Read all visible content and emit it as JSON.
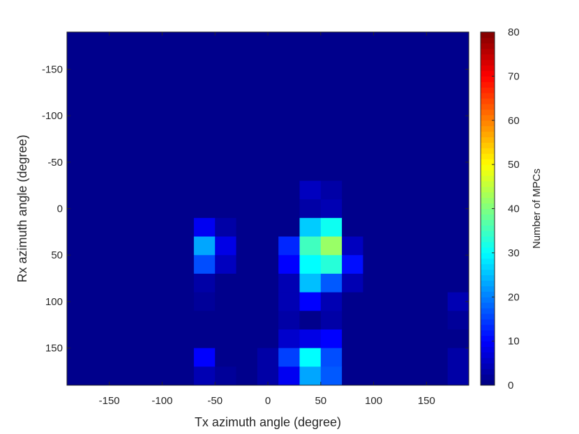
{
  "chart_data": {
    "type": "heatmap",
    "xlabel": "Tx azimuth angle (degree)",
    "ylabel": "Rx azimuth angle (degree)",
    "colorbar_label": "Number of MPCs",
    "colormap": "jet",
    "xlim": [
      -190,
      190
    ],
    "ylim": [
      -190,
      190
    ],
    "y_direction": "reversed",
    "x_ticks": [
      -150,
      -100,
      -50,
      0,
      50,
      100,
      150
    ],
    "y_ticks": [
      -150,
      -100,
      -50,
      0,
      50,
      100,
      150
    ],
    "color_range": [
      0,
      80
    ],
    "colorbar_ticks": [
      0,
      10,
      20,
      30,
      40,
      50,
      60,
      70,
      80
    ],
    "bin_width_deg": 20,
    "cell_x_centers": [
      -180,
      -160,
      -140,
      -120,
      -100,
      -80,
      -60,
      -40,
      -20,
      0,
      20,
      40,
      60,
      80,
      100,
      120,
      140,
      160,
      180
    ],
    "cell_y_centers": [
      -180,
      -160,
      -140,
      -120,
      -100,
      -80,
      -60,
      -40,
      -20,
      0,
      20,
      40,
      60,
      80,
      100,
      120,
      140,
      160,
      180
    ],
    "background_value": 1,
    "cells": [
      {
        "x": 40,
        "y": -20,
        "v": 5
      },
      {
        "x": 60,
        "y": -20,
        "v": 3
      },
      {
        "x": 40,
        "y": 0,
        "v": 3
      },
      {
        "x": 60,
        "y": 0,
        "v": 4
      },
      {
        "x": -60,
        "y": 20,
        "v": 9
      },
      {
        "x": -40,
        "y": 20,
        "v": 3
      },
      {
        "x": 40,
        "y": 20,
        "v": 26
      },
      {
        "x": 60,
        "y": 20,
        "v": 31
      },
      {
        "x": -60,
        "y": 40,
        "v": 23
      },
      {
        "x": -40,
        "y": 40,
        "v": 8
      },
      {
        "x": 20,
        "y": 40,
        "v": 13
      },
      {
        "x": 40,
        "y": 40,
        "v": 35
      },
      {
        "x": 60,
        "y": 40,
        "v": 42
      },
      {
        "x": 80,
        "y": 40,
        "v": 5
      },
      {
        "x": -60,
        "y": 60,
        "v": 16
      },
      {
        "x": -40,
        "y": 60,
        "v": 5
      },
      {
        "x": 20,
        "y": 60,
        "v": 10
      },
      {
        "x": 40,
        "y": 60,
        "v": 30
      },
      {
        "x": 60,
        "y": 60,
        "v": 33
      },
      {
        "x": 80,
        "y": 60,
        "v": 11
      },
      {
        "x": -60,
        "y": 80,
        "v": 3
      },
      {
        "x": 20,
        "y": 80,
        "v": 4
      },
      {
        "x": 40,
        "y": 80,
        "v": 25
      },
      {
        "x": 60,
        "y": 80,
        "v": 17
      },
      {
        "x": 80,
        "y": 80,
        "v": 4
      },
      {
        "x": -60,
        "y": 100,
        "v": 2
      },
      {
        "x": 20,
        "y": 100,
        "v": 4
      },
      {
        "x": 40,
        "y": 100,
        "v": 10
      },
      {
        "x": 60,
        "y": 100,
        "v": 4
      },
      {
        "x": 180,
        "y": 100,
        "v": 4
      },
      {
        "x": 20,
        "y": 120,
        "v": 3
      },
      {
        "x": 40,
        "y": 120,
        "v": 1
      },
      {
        "x": 60,
        "y": 120,
        "v": 3
      },
      {
        "x": 180,
        "y": 120,
        "v": 2
      },
      {
        "x": 20,
        "y": 140,
        "v": 6
      },
      {
        "x": 40,
        "y": 140,
        "v": 8
      },
      {
        "x": 60,
        "y": 140,
        "v": 10
      },
      {
        "x": -60,
        "y": 160,
        "v": 10
      },
      {
        "x": 0,
        "y": 160,
        "v": 3
      },
      {
        "x": 20,
        "y": 160,
        "v": 15
      },
      {
        "x": 40,
        "y": 160,
        "v": 30
      },
      {
        "x": 60,
        "y": 160,
        "v": 16
      },
      {
        "x": 180,
        "y": 160,
        "v": 3
      },
      {
        "x": -60,
        "y": 180,
        "v": 4
      },
      {
        "x": -40,
        "y": 180,
        "v": 2
      },
      {
        "x": 0,
        "y": 180,
        "v": 3
      },
      {
        "x": 20,
        "y": 180,
        "v": 9
      },
      {
        "x": 40,
        "y": 180,
        "v": 23
      },
      {
        "x": 60,
        "y": 180,
        "v": 17
      },
      {
        "x": 180,
        "y": 180,
        "v": 3
      }
    ]
  }
}
